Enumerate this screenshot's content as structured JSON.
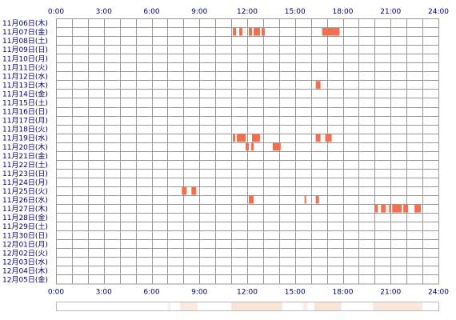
{
  "chart_data": {
    "type": "heatmap",
    "x_ticks": [
      "0:00",
      "3:00",
      "6:00",
      "9:00",
      "12:00",
      "15:00",
      "18:00",
      "21:00",
      "24:00"
    ],
    "x_range": [
      0,
      24
    ],
    "rows": [
      "11月06日(木)",
      "11月07日(金)",
      "11月08日(土)",
      "11月09日(日)",
      "11月10日(月)",
      "11月11日(火)",
      "11月12日(水)",
      "11月13日(木)",
      "11月14日(金)",
      "11月15日(土)",
      "11月16日(日)",
      "11月17日(月)",
      "11月18日(火)",
      "11月19日(水)",
      "11月20日(木)",
      "11月21日(金)",
      "11月22日(土)",
      "11月23日(日)",
      "11月24日(月)",
      "11月25日(火)",
      "11月26日(水)",
      "11月27日(木)",
      "11月28日(金)",
      "11月29日(土)",
      "11月30日(日)",
      "12月01日(月)",
      "12月02日(火)",
      "12月03日(水)",
      "12月04日(木)",
      "12月05日(金)"
    ],
    "grid": true,
    "colors": {
      "activity": "#f36f4e",
      "activity_light": "#f8a084",
      "grid": "#999999",
      "label": "#000066",
      "summary_bg": "#f8e0d0"
    },
    "activity": [
      {
        "row": 1,
        "start": 11.1,
        "end": 11.3
      },
      {
        "row": 1,
        "start": 11.5,
        "end": 11.7
      },
      {
        "row": 1,
        "start": 12.1,
        "end": 12.3
      },
      {
        "row": 1,
        "start": 12.4,
        "end": 12.8
      },
      {
        "row": 1,
        "start": 12.9,
        "end": 13.1
      },
      {
        "row": 1,
        "start": 16.7,
        "end": 17.8
      },
      {
        "row": 7,
        "start": 16.3,
        "end": 16.6
      },
      {
        "row": 13,
        "start": 11.1,
        "end": 11.25
      },
      {
        "row": 13,
        "start": 11.35,
        "end": 11.9
      },
      {
        "row": 13,
        "start": 12.3,
        "end": 12.8
      },
      {
        "row": 13,
        "start": 16.3,
        "end": 16.6
      },
      {
        "row": 13,
        "start": 16.9,
        "end": 17.3
      },
      {
        "row": 14,
        "start": 11.9,
        "end": 12.1
      },
      {
        "row": 14,
        "start": 12.25,
        "end": 12.4
      },
      {
        "row": 14,
        "start": 13.6,
        "end": 14.1
      },
      {
        "row": 19,
        "start": 7.9,
        "end": 8.2
      },
      {
        "row": 19,
        "start": 8.5,
        "end": 8.8
      },
      {
        "row": 20,
        "start": 12.1,
        "end": 12.4
      },
      {
        "row": 20,
        "start": 15.6,
        "end": 15.7
      },
      {
        "row": 20,
        "start": 16.3,
        "end": 16.5
      },
      {
        "row": 21,
        "start": 20.0,
        "end": 20.2
      },
      {
        "row": 21,
        "start": 20.4,
        "end": 20.7
      },
      {
        "row": 21,
        "start": 20.9,
        "end": 21.0
      },
      {
        "row": 21,
        "start": 21.1,
        "end": 21.7
      },
      {
        "row": 21,
        "start": 21.8,
        "end": 22.1
      },
      {
        "row": 21,
        "start": 22.5,
        "end": 22.9
      }
    ],
    "summary_bands": [
      {
        "start": 7.0,
        "end": 7.2,
        "level": 0.2
      },
      {
        "start": 7.8,
        "end": 8.9,
        "level": 0.5
      },
      {
        "start": 11.0,
        "end": 14.2,
        "level": 0.8
      },
      {
        "start": 15.5,
        "end": 15.8,
        "level": 0.3
      },
      {
        "start": 16.2,
        "end": 17.9,
        "level": 0.8
      },
      {
        "start": 19.9,
        "end": 23.0,
        "level": 0.6
      }
    ]
  }
}
